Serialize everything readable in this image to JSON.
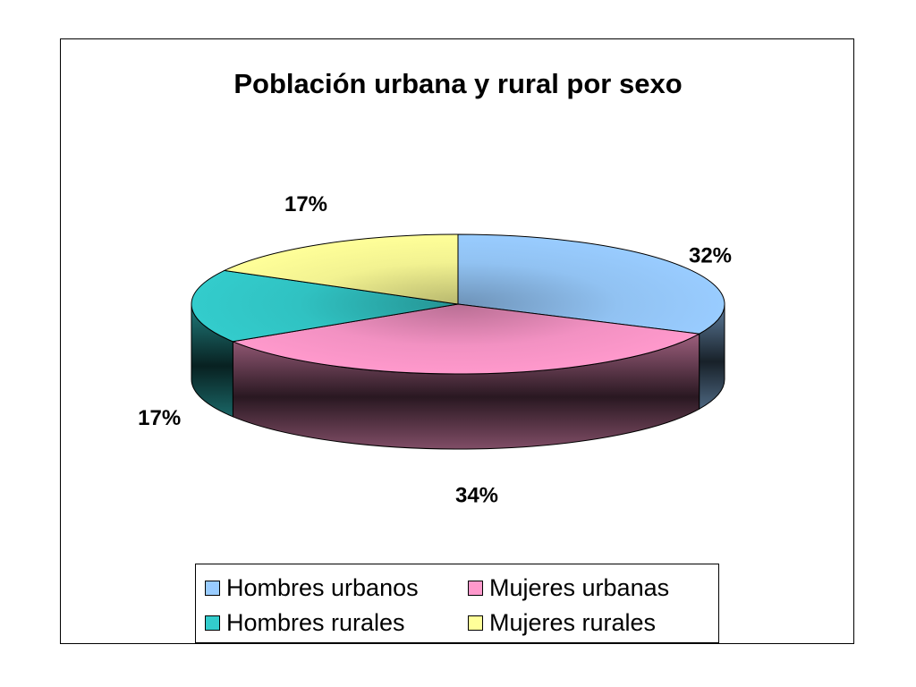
{
  "chart_data": {
    "type": "pie",
    "title": "Población urbana y rural por sexo",
    "three_d": true,
    "categories": [
      "Hombres urbanos",
      "Mujeres urbanas",
      "Hombres rurales",
      "Mujeres rurales"
    ],
    "values": [
      32,
      34,
      17,
      17
    ],
    "labels": [
      "32%",
      "34%",
      "17%",
      "17%"
    ],
    "colors": [
      "#99CCFF",
      "#FF99CC",
      "#33CCCC",
      "#FFFF99"
    ],
    "legend_placement": "bottom"
  },
  "legend": {
    "items": [
      {
        "label": "Hombres urbanos",
        "color": "#99CCFF"
      },
      {
        "label": "Mujeres urbanas",
        "color": "#FF99CC"
      },
      {
        "label": "Hombres rurales",
        "color": "#33CCCC"
      },
      {
        "label": "Mujeres rurales",
        "color": "#FFFF99"
      }
    ]
  }
}
